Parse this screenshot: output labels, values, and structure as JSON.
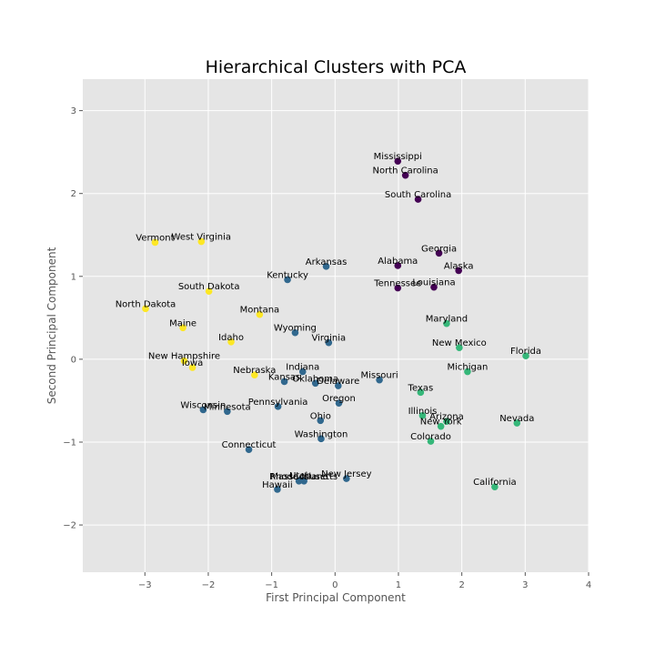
{
  "chart_data": {
    "type": "scatter",
    "title": "Hierarchical Clusters with PCA",
    "xlabel": "First Principal Component",
    "ylabel": "Second Principal Component",
    "xlim": [
      -3.98,
      4.0
    ],
    "ylim": [
      -2.57,
      3.38
    ],
    "xticks": [
      -3,
      -2,
      -1,
      0,
      1,
      2,
      3,
      4
    ],
    "yticks": [
      -2,
      -1,
      0,
      1,
      2,
      3
    ],
    "xtick_labels": [
      "−3",
      "−2",
      "−1",
      "0",
      "1",
      "2",
      "3",
      "4"
    ],
    "ytick_labels": [
      "−2",
      "−1",
      "0",
      "1",
      "2",
      "3"
    ],
    "grid": true,
    "cluster_colors": {
      "0": "#440154",
      "1": "#31688e",
      "2": "#35b779",
      "3": "#fde725"
    },
    "points": [
      {
        "state": "Alabama",
        "x": 0.99,
        "y": 1.13,
        "cluster": 0
      },
      {
        "state": "Alaska",
        "x": 1.95,
        "y": 1.07,
        "cluster": 0
      },
      {
        "state": "Arizona",
        "x": 1.76,
        "y": -0.75,
        "cluster": 2
      },
      {
        "state": "Arkansas",
        "x": -0.14,
        "y": 1.12,
        "cluster": 1
      },
      {
        "state": "California",
        "x": 2.52,
        "y": -1.54,
        "cluster": 2
      },
      {
        "state": "Colorado",
        "x": 1.51,
        "y": -0.99,
        "cluster": 2
      },
      {
        "state": "Connecticut",
        "x": -1.36,
        "y": -1.09,
        "cluster": 1
      },
      {
        "state": "Delaware",
        "x": 0.05,
        "y": -0.32,
        "cluster": 1
      },
      {
        "state": "Florida",
        "x": 3.01,
        "y": 0.04,
        "cluster": 2
      },
      {
        "state": "Georgia",
        "x": 1.64,
        "y": 1.28,
        "cluster": 0
      },
      {
        "state": "Hawaii",
        "x": -0.91,
        "y": -1.57,
        "cluster": 1
      },
      {
        "state": "Idaho",
        "x": -1.64,
        "y": 0.21,
        "cluster": 3
      },
      {
        "state": "Illinois",
        "x": 1.38,
        "y": -0.68,
        "cluster": 2
      },
      {
        "state": "Indiana",
        "x": -0.51,
        "y": -0.15,
        "cluster": 1
      },
      {
        "state": "Iowa",
        "x": -2.25,
        "y": -0.1,
        "cluster": 3
      },
      {
        "state": "Kansas",
        "x": -0.8,
        "y": -0.27,
        "cluster": 1
      },
      {
        "state": "Kentucky",
        "x": -0.75,
        "y": 0.96,
        "cluster": 1
      },
      {
        "state": "Louisiana",
        "x": 1.56,
        "y": 0.87,
        "cluster": 0
      },
      {
        "state": "Maine",
        "x": -2.4,
        "y": 0.38,
        "cluster": 3
      },
      {
        "state": "Maryland",
        "x": 1.76,
        "y": 0.43,
        "cluster": 2
      },
      {
        "state": "Massachusetts",
        "x": -0.49,
        "y": -1.47,
        "cluster": 1
      },
      {
        "state": "Michigan",
        "x": 2.09,
        "y": -0.15,
        "cluster": 2
      },
      {
        "state": "Minnesota",
        "x": -1.7,
        "y": -0.63,
        "cluster": 1
      },
      {
        "state": "Mississippi",
        "x": 0.99,
        "y": 2.39,
        "cluster": 0
      },
      {
        "state": "Missouri",
        "x": 0.7,
        "y": -0.25,
        "cluster": 1
      },
      {
        "state": "Montana",
        "x": -1.19,
        "y": 0.54,
        "cluster": 3
      },
      {
        "state": "Nebraska",
        "x": -1.27,
        "y": -0.19,
        "cluster": 3
      },
      {
        "state": "Nevada",
        "x": 2.87,
        "y": -0.77,
        "cluster": 2
      },
      {
        "state": "New Hampshire",
        "x": -2.38,
        "y": -0.02,
        "cluster": 3
      },
      {
        "state": "New Jersey",
        "x": 0.18,
        "y": -1.44,
        "cluster": 1
      },
      {
        "state": "New Mexico",
        "x": 1.96,
        "y": 0.14,
        "cluster": 2
      },
      {
        "state": "New York",
        "x": 1.67,
        "y": -0.81,
        "cluster": 2
      },
      {
        "state": "North Carolina",
        "x": 1.11,
        "y": 2.22,
        "cluster": 0
      },
      {
        "state": "North Dakota",
        "x": -2.99,
        "y": 0.61,
        "cluster": 3
      },
      {
        "state": "Ohio",
        "x": -0.23,
        "y": -0.74,
        "cluster": 1
      },
      {
        "state": "Oklahoma",
        "x": -0.31,
        "y": -0.29,
        "cluster": 1
      },
      {
        "state": "Oregon",
        "x": 0.06,
        "y": -0.53,
        "cluster": 1
      },
      {
        "state": "Pennsylvania",
        "x": -0.9,
        "y": -0.57,
        "cluster": 1
      },
      {
        "state": "Rhode Island",
        "x": -0.57,
        "y": -1.47,
        "cluster": 1
      },
      {
        "state": "South Carolina",
        "x": 1.31,
        "y": 1.93,
        "cluster": 0
      },
      {
        "state": "South Dakota",
        "x": -1.99,
        "y": 0.82,
        "cluster": 3
      },
      {
        "state": "Tennessee",
        "x": 0.99,
        "y": 0.86,
        "cluster": 0
      },
      {
        "state": "Texas",
        "x": 1.35,
        "y": -0.4,
        "cluster": 2
      },
      {
        "state": "Utah",
        "x": -0.55,
        "y": -1.46,
        "cluster": 1
      },
      {
        "state": "Vermont",
        "x": -2.84,
        "y": 1.41,
        "cluster": 3
      },
      {
        "state": "Virginia",
        "x": -0.1,
        "y": 0.2,
        "cluster": 1
      },
      {
        "state": "Washington",
        "x": -0.22,
        "y": -0.96,
        "cluster": 1
      },
      {
        "state": "West Virginia",
        "x": -2.11,
        "y": 1.42,
        "cluster": 3
      },
      {
        "state": "Wisconsin",
        "x": -2.08,
        "y": -0.61,
        "cluster": 1
      },
      {
        "state": "Wyoming",
        "x": -0.63,
        "y": 0.32,
        "cluster": 1
      }
    ]
  }
}
